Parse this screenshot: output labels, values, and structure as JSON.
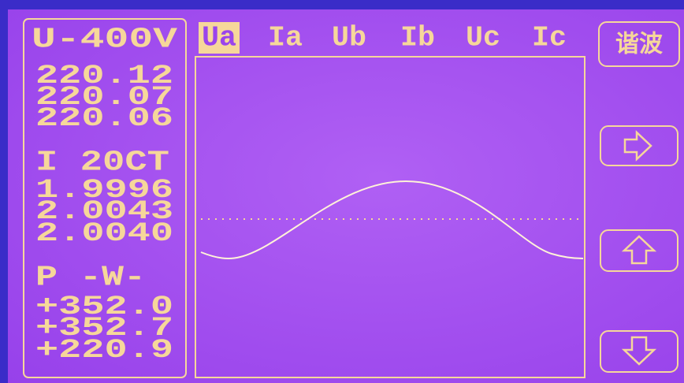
{
  "left_panel": {
    "voltage": {
      "label": "U-400V",
      "values": [
        "220.12",
        "220.07",
        "220.06"
      ]
    },
    "current": {
      "label": "I 20CT",
      "values": [
        "1.9996",
        "2.0043",
        "2.0040"
      ]
    },
    "power": {
      "label": "P -W-",
      "values": [
        "+352.0",
        "+352.7",
        "+220.9"
      ]
    }
  },
  "tabs": [
    "Ua",
    "Ia",
    "Ub",
    "Ib",
    "Uc",
    "Ic"
  ],
  "selected_tab": 0,
  "buttons": {
    "harmonics": "谐波"
  }
}
